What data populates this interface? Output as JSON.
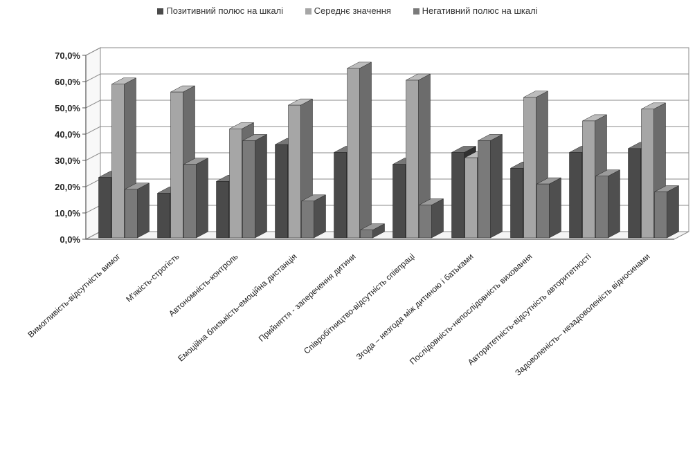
{
  "chart_data": {
    "type": "bar",
    "style": "3d-clustered-column",
    "categories": [
      "Вимогливість-відсутність вимог",
      "М'якість-строгість",
      "Автономність-контроль",
      "Емоційна близькість-емоційна дистанція",
      "Прийняття - заперечення дитини",
      "Співробітництво-відсутність співпраці",
      "Згода – незгода між дитиною і батьками",
      "Послідовність-непослідовність виховання",
      "Авторитетність-відсутність авторитетності",
      "Задоволеність– незадоволеність відносинами"
    ],
    "series": [
      {
        "name": "Позитивний полюс на шкалі",
        "color": "#4a4a4a",
        "values": [
          23,
          17,
          21.5,
          35.5,
          32.5,
          28,
          32.5,
          26.5,
          32.5,
          34
        ]
      },
      {
        "name": "Середнє значення",
        "color": "#a6a6a6",
        "values": [
          58.5,
          55.5,
          41.5,
          50.5,
          64.5,
          60,
          30.5,
          53.5,
          44.5,
          49
        ]
      },
      {
        "name": "Негативний полюс на шкалі",
        "color": "#7a7a7a",
        "values": [
          18.5,
          28,
          37,
          14,
          3,
          12.5,
          37,
          20.5,
          23.5,
          17.5
        ]
      }
    ],
    "ylim": [
      0,
      70
    ],
    "yticks": [
      "0,0%",
      "10,0%",
      "20,0%",
      "30,0%",
      "40,0%",
      "50,0%",
      "60,0%",
      "70,0%"
    ],
    "grid": true,
    "legend_position": "top"
  }
}
